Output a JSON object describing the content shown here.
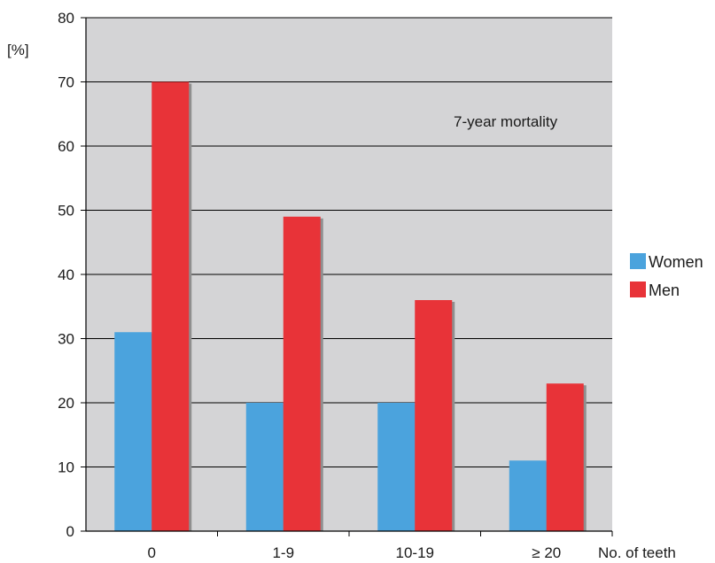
{
  "chart_data": {
    "type": "bar",
    "title": "",
    "annotation": "7-year mortality",
    "ylabel": "[%]",
    "xlabel": "No. of teeth",
    "categories": [
      "0",
      "1-9",
      "10-19",
      "≥ 20"
    ],
    "series": [
      {
        "name": "Women",
        "values": [
          31,
          20,
          20,
          11
        ],
        "color": "#4ba3dd"
      },
      {
        "name": "Men",
        "values": [
          70,
          49,
          36,
          23
        ],
        "color": "#e83338"
      }
    ],
    "ylim": [
      0,
      80
    ],
    "yticks": [
      0,
      10,
      20,
      30,
      40,
      50,
      60,
      70,
      80
    ],
    "grid": true,
    "legend_position": "right",
    "plot_background": "#d4d4d6"
  }
}
